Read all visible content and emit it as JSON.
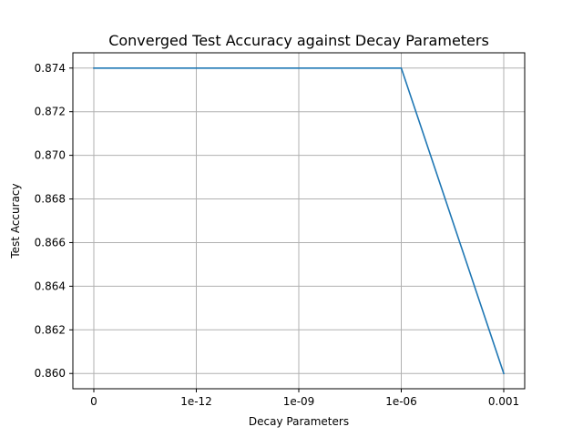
{
  "chart_data": {
    "type": "line",
    "title": "Converged Test Accuracy against Decay Parameters",
    "xlabel": "Decay Parameters",
    "ylabel": "Test Accuracy",
    "categories": [
      "0",
      "1e-12",
      "1e-09",
      "1e-06",
      "0.001"
    ],
    "series": [
      {
        "values": [
          0.874,
          0.874,
          0.874,
          0.874,
          0.86
        ],
        "color": "#1f77b4"
      }
    ],
    "yticks": [
      "0.860",
      "0.862",
      "0.864",
      "0.866",
      "0.868",
      "0.870",
      "0.872",
      "0.874"
    ],
    "ylim": [
      0.8593,
      0.8747
    ],
    "grid": true,
    "legend": "none"
  }
}
